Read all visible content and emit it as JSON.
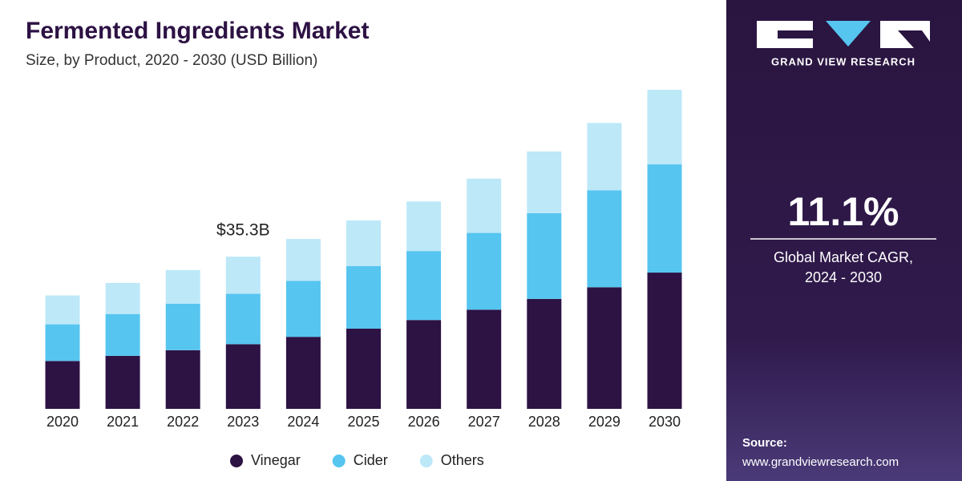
{
  "chart_data": {
    "type": "stacked_bar",
    "title": "Fermented Ingredients Market",
    "subtitle": "Size, by Product, 2020 - 2030 (USD Billion)",
    "categories": [
      "2020",
      "2021",
      "2022",
      "2023",
      "2024",
      "2025",
      "2026",
      "2027",
      "2028",
      "2029",
      "2030"
    ],
    "series": [
      {
        "name": "Vinegar",
        "color": "#2d1244",
        "values": [
          11.1,
          12.3,
          13.6,
          15.0,
          16.7,
          18.6,
          20.6,
          23.0,
          25.5,
          28.2,
          31.6
        ]
      },
      {
        "name": "Cider",
        "color": "#56c5f0",
        "values": [
          8.5,
          9.7,
          10.8,
          11.7,
          13.0,
          14.5,
          16.0,
          17.8,
          19.9,
          22.5,
          25.1
        ]
      },
      {
        "name": "Others",
        "color": "#bde8f8",
        "values": [
          6.7,
          7.2,
          7.8,
          8.6,
          9.7,
          10.6,
          11.5,
          12.6,
          14.3,
          15.6,
          17.3
        ]
      }
    ],
    "annotation": {
      "text": "$35.3B",
      "value": 35.3,
      "category": "2023"
    }
  },
  "side_panel": {
    "brand": "GRAND VIEW RESEARCH",
    "cagr": "11.1%",
    "cagr_label": "Global Market CAGR,",
    "cagr_period": "2024 - 2030",
    "source_label": "Source:",
    "source_url": "www.grandviewresearch.com"
  }
}
